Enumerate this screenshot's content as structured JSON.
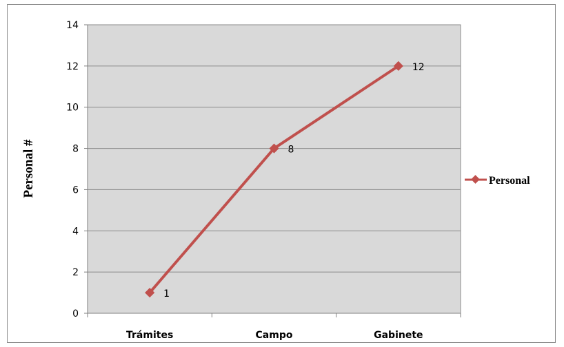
{
  "chart_data": {
    "type": "line",
    "categories": [
      "Trámites",
      "Campo",
      "Gabinete"
    ],
    "series": [
      {
        "name": "Personal",
        "values": [
          1,
          8,
          12
        ],
        "color": "#c0504d"
      }
    ],
    "xlabel": "",
    "ylabel": "Personal #",
    "ylim": [
      0,
      14
    ],
    "yticks": [
      0,
      2,
      4,
      6,
      8,
      10,
      12,
      14
    ],
    "data_labels": true,
    "grid": true,
    "plot_background": "#d9d9d9",
    "legend_position": "right"
  }
}
